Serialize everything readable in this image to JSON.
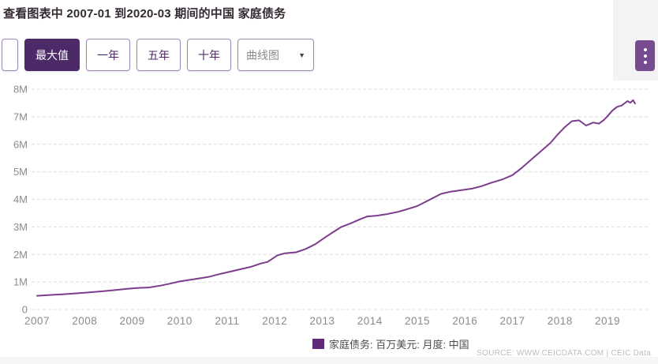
{
  "header": {
    "title": "查看图表中 2007-01 到2020-03 期间的中国 家庭债务"
  },
  "toolbar": {
    "buttons": [
      {
        "label": "最大值",
        "selected": true
      },
      {
        "label": "一年",
        "selected": false
      },
      {
        "label": "五年",
        "selected": false
      },
      {
        "label": "十年",
        "selected": false
      }
    ],
    "chart_type_dropdown": {
      "value": "曲线图",
      "caret_icon": "▼"
    },
    "menu_icon": "kebab-menu-icon"
  },
  "legend": {
    "label": "家庭债务: 百万美元: 月度: 中国",
    "swatch_color": "#602a78"
  },
  "source": "SOURCE: WWW.CEICDATA.COM | CEIC Data",
  "colors": {
    "accent_dark_purple": "#4b2a67",
    "line_purple": "#7d3c8d",
    "kebab_purple": "#774b90",
    "gridline": "#dedde0",
    "axis_label": "#8b8b8b"
  },
  "chart_data": {
    "type": "line",
    "title": "中国 家庭债务 2007-01 到 2020-03",
    "xlabel": "",
    "ylabel": "百万美元",
    "ylim": [
      0,
      8
    ],
    "y_unit": "M",
    "grid": "dashed horizontal",
    "legend_position": "bottom-center",
    "x_ticks": [
      2007,
      2008,
      2009,
      2010,
      2011,
      2012,
      2013,
      2014,
      2015,
      2016,
      2017,
      2018,
      2019
    ],
    "y_ticks": [
      "0",
      "1M",
      "2M",
      "3M",
      "4M",
      "5M",
      "6M",
      "7M",
      "8M"
    ],
    "note": "x values are fractional years; y values in M (百万美元), estimated from gridlines",
    "series": [
      {
        "name": "家庭债务: 百万美元: 月度: 中国",
        "color": "#7d3c8d",
        "points": [
          [
            2007.0,
            0.5
          ],
          [
            2007.3,
            0.53
          ],
          [
            2007.6,
            0.56
          ],
          [
            2008.0,
            0.61
          ],
          [
            2008.3,
            0.65
          ],
          [
            2008.6,
            0.7
          ],
          [
            2008.9,
            0.75
          ],
          [
            2009.1,
            0.78
          ],
          [
            2009.35,
            0.8
          ],
          [
            2009.6,
            0.87
          ],
          [
            2009.8,
            0.94
          ],
          [
            2010.0,
            1.02
          ],
          [
            2010.3,
            1.1
          ],
          [
            2010.6,
            1.18
          ],
          [
            2010.8,
            1.27
          ],
          [
            2011.0,
            1.35
          ],
          [
            2011.25,
            1.45
          ],
          [
            2011.5,
            1.55
          ],
          [
            2011.7,
            1.67
          ],
          [
            2011.85,
            1.73
          ],
          [
            2012.05,
            1.96
          ],
          [
            2012.2,
            2.04
          ],
          [
            2012.45,
            2.08
          ],
          [
            2012.65,
            2.2
          ],
          [
            2012.85,
            2.37
          ],
          [
            2013.0,
            2.55
          ],
          [
            2013.2,
            2.78
          ],
          [
            2013.4,
            3.0
          ],
          [
            2013.6,
            3.13
          ],
          [
            2013.8,
            3.28
          ],
          [
            2013.95,
            3.38
          ],
          [
            2014.15,
            3.41
          ],
          [
            2014.35,
            3.46
          ],
          [
            2014.6,
            3.55
          ],
          [
            2014.8,
            3.65
          ],
          [
            2015.0,
            3.76
          ],
          [
            2015.25,
            3.98
          ],
          [
            2015.5,
            4.2
          ],
          [
            2015.7,
            4.28
          ],
          [
            2015.95,
            4.34
          ],
          [
            2016.15,
            4.39
          ],
          [
            2016.35,
            4.48
          ],
          [
            2016.55,
            4.6
          ],
          [
            2016.8,
            4.73
          ],
          [
            2017.0,
            4.88
          ],
          [
            2017.2,
            5.15
          ],
          [
            2017.4,
            5.45
          ],
          [
            2017.6,
            5.75
          ],
          [
            2017.8,
            6.05
          ],
          [
            2017.95,
            6.35
          ],
          [
            2018.1,
            6.62
          ],
          [
            2018.25,
            6.84
          ],
          [
            2018.4,
            6.87
          ],
          [
            2018.55,
            6.68
          ],
          [
            2018.7,
            6.79
          ],
          [
            2018.82,
            6.75
          ],
          [
            2018.92,
            6.88
          ],
          [
            2019.0,
            7.02
          ],
          [
            2019.1,
            7.22
          ],
          [
            2019.2,
            7.36
          ],
          [
            2019.3,
            7.41
          ],
          [
            2019.42,
            7.57
          ],
          [
            2019.48,
            7.51
          ],
          [
            2019.54,
            7.6
          ],
          [
            2019.58,
            7.48
          ]
        ]
      }
    ]
  }
}
